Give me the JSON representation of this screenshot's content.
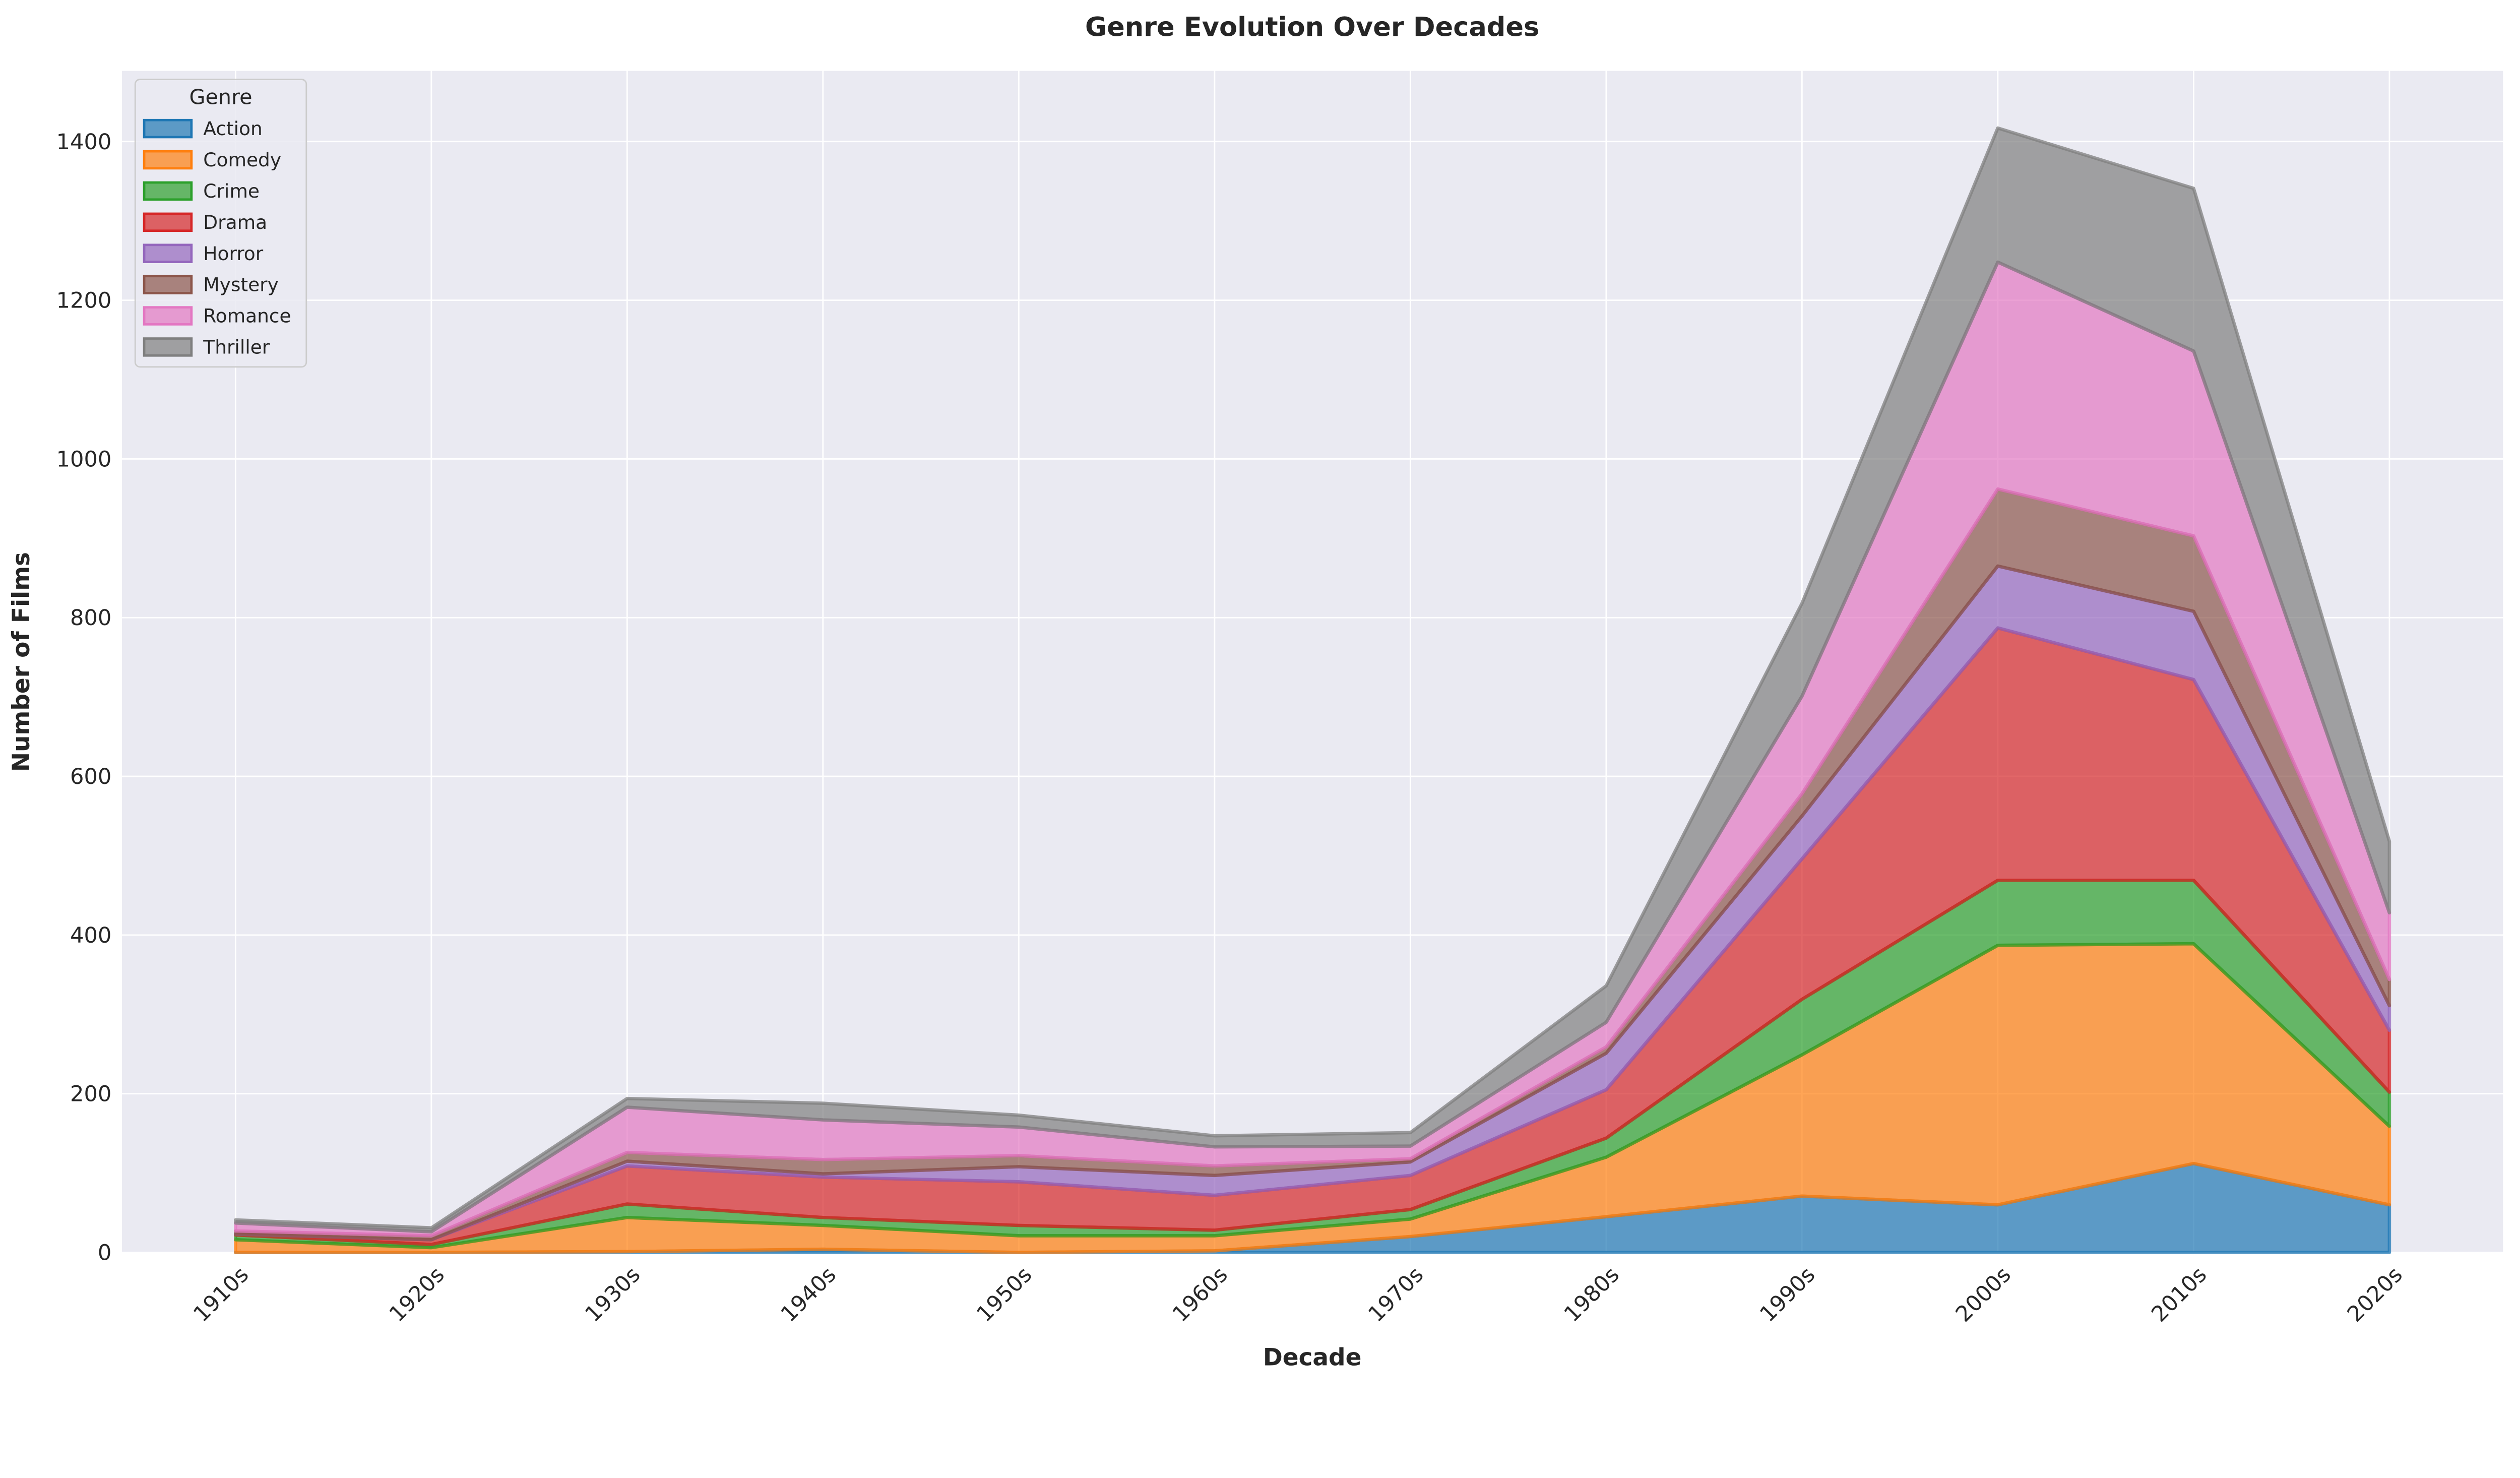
{
  "chart_data": {
    "type": "area",
    "stacked": true,
    "title": "Genre Evolution Over Decades",
    "xlabel": "Decade",
    "ylabel": "Number of Films",
    "categories": [
      "1910s",
      "1920s",
      "1930s",
      "1940s",
      "1950s",
      "1960s",
      "1970s",
      "1980s",
      "1990s",
      "2000s",
      "2010s",
      "2020s"
    ],
    "ylim": [
      0,
      1489
    ],
    "yticks": [
      0,
      200,
      400,
      600,
      800,
      1000,
      1200,
      1400
    ],
    "grid": true,
    "legend": {
      "title": "Genre",
      "placement": "top-left"
    },
    "series": [
      {
        "name": "Action",
        "color": "#1f77b4",
        "values": [
          0,
          0,
          1,
          4,
          0,
          2,
          20,
          45,
          71,
          60,
          112,
          60
        ]
      },
      {
        "name": "Comedy",
        "color": "#ff7f0e",
        "values": [
          16,
          6,
          43,
          30,
          21,
          19,
          22,
          75,
          178,
          327,
          277,
          99
        ]
      },
      {
        "name": "Crime",
        "color": "#2ca02c",
        "values": [
          6,
          4,
          17,
          10,
          13,
          7,
          12,
          24,
          70,
          82,
          80,
          43
        ]
      },
      {
        "name": "Drama",
        "color": "#d62728",
        "values": [
          1,
          6,
          48,
          51,
          55,
          44,
          43,
          61,
          177,
          318,
          253,
          78
        ]
      },
      {
        "name": "Horror",
        "color": "#9467bd",
        "values": [
          0,
          0,
          6,
          4,
          19,
          25,
          17,
          46,
          54,
          78,
          86,
          31
        ]
      },
      {
        "name": "Mystery",
        "color": "#8c564b",
        "values": [
          4,
          5,
          11,
          18,
          14,
          12,
          4,
          8,
          28,
          97,
          95,
          33
        ]
      },
      {
        "name": "Romance",
        "color": "#e377c2",
        "values": [
          10,
          5,
          57,
          50,
          36,
          24,
          16,
          31,
          123,
          286,
          233,
          84
        ]
      },
      {
        "name": "Thriller",
        "color": "#7f7f7f",
        "values": [
          4,
          5,
          11,
          21,
          15,
          14,
          17,
          46,
          117,
          169,
          205,
          90
        ]
      }
    ]
  },
  "style": {
    "plot_background": "#eaeaf2",
    "grid_color": "#ffffff"
  }
}
